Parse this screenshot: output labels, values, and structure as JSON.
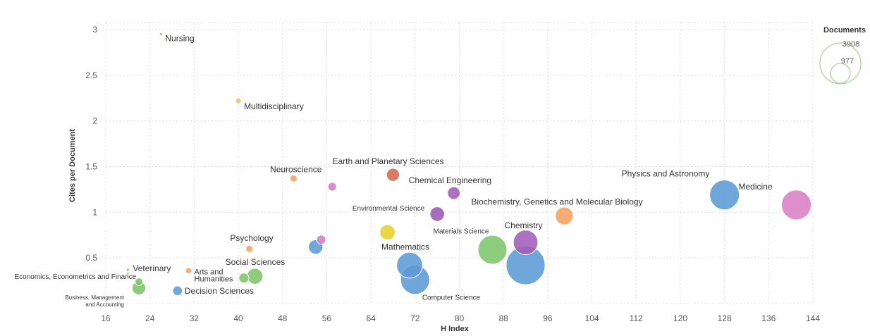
{
  "chart_data": {
    "type": "scatter",
    "xlabel": "H Index",
    "ylabel": "Cites per Document",
    "xlim": [
      16,
      144
    ],
    "ylim": [
      0,
      3
    ],
    "x_ticks": [
      16,
      24,
      32,
      40,
      48,
      56,
      64,
      72,
      80,
      88,
      96,
      104,
      112,
      120,
      128,
      136,
      144
    ],
    "y_ticks": [
      0.5,
      1,
      1.5,
      2,
      2.5,
      3
    ],
    "grid": true,
    "legend": {
      "title": "Documents",
      "values": [
        3908,
        977
      ],
      "placement": "top-right"
    },
    "points": [
      {
        "label": "Nursing",
        "x": 26,
        "y": 2.95,
        "size": 10,
        "color": "#f4a261"
      },
      {
        "label": "Multidisciplinary",
        "x": 40,
        "y": 2.22,
        "size": 40,
        "color": "#e9c46a"
      },
      {
        "label": "Neuroscience",
        "x": 50,
        "y": 1.37,
        "size": 60,
        "color": "#f4a261"
      },
      {
        "label": "",
        "x": 57,
        "y": 1.28,
        "size": 90,
        "color": "#d17fc4"
      },
      {
        "label": "Earth and Planetary Sciences",
        "x": 68,
        "y": 1.41,
        "size": 200,
        "color": "#d0694f"
      },
      {
        "label": "Chemical Engineering",
        "x": 79,
        "y": 1.21,
        "size": 190,
        "color": "#a35db8"
      },
      {
        "label": "Environmental Science",
        "x": 76,
        "y": 0.98,
        "size": 250,
        "color": "#9b59b6"
      },
      {
        "label": "Biochemistry, Genetics and Molecular Biology",
        "x": 99,
        "y": 0.96,
        "size": 380,
        "color": "#f4a261"
      },
      {
        "label": "Physics and Astronomy",
        "x": 128,
        "y": 1.19,
        "size": 1050,
        "color": "#5b9bd5"
      },
      {
        "label": "Medicine",
        "x": 141,
        "y": 1.08,
        "size": 1060,
        "color": "#d97fc4"
      },
      {
        "label": "",
        "x": 67,
        "y": 0.78,
        "size": 280,
        "color": "#e5d02a"
      },
      {
        "label": "Chemistry",
        "x": 92,
        "y": 0.67,
        "size": 720,
        "color": "#a35db8"
      },
      {
        "label": "Materials Science",
        "x": 86,
        "y": 0.59,
        "size": 1000,
        "color": "#7cc56a"
      },
      {
        "label": "",
        "x": 55,
        "y": 0.7,
        "size": 100,
        "color": "#d17fc4"
      },
      {
        "label": "",
        "x": 54,
        "y": 0.62,
        "size": 250,
        "color": "#5b9bd5"
      },
      {
        "label": "Psychology",
        "x": 42,
        "y": 0.6,
        "size": 60,
        "color": "#f4a261"
      },
      {
        "label": "Mathematics",
        "x": 71,
        "y": 0.42,
        "size": 800,
        "color": "#5b9bd5"
      },
      {
        "label": "Computer Science",
        "x": 72,
        "y": 0.26,
        "size": 1000,
        "color": "#5b9bd5"
      },
      {
        "label": "",
        "x": 92,
        "y": 0.42,
        "size": 1800,
        "color": "#5b9bd5"
      },
      {
        "label": "Social Sciences",
        "x": 43,
        "y": 0.3,
        "size": 300,
        "color": "#7cc56a"
      },
      {
        "label": "",
        "x": 41,
        "y": 0.28,
        "size": 120,
        "color": "#7cc56a"
      },
      {
        "label": "Arts and Humanities",
        "x": 31,
        "y": 0.36,
        "size": 45,
        "color": "#f4a261"
      },
      {
        "label": "Decision Sciences",
        "x": 29,
        "y": 0.14,
        "size": 110,
        "color": "#5b9bd5"
      },
      {
        "label": "Veterinary",
        "x": 20,
        "y": 0.37,
        "size": 8,
        "color": "#7cc56a"
      },
      {
        "label": "Economics, Econometrics and Finance",
        "x": 20,
        "y": 0.33,
        "size": 8,
        "color": "#e9c46a"
      },
      {
        "label": "",
        "x": 22,
        "y": 0.24,
        "size": 70,
        "color": "#7cc56a"
      },
      {
        "label": "Business, Management and Accounting",
        "x": 22,
        "y": 0.17,
        "size": 220,
        "color": "#7cc56a"
      }
    ]
  }
}
